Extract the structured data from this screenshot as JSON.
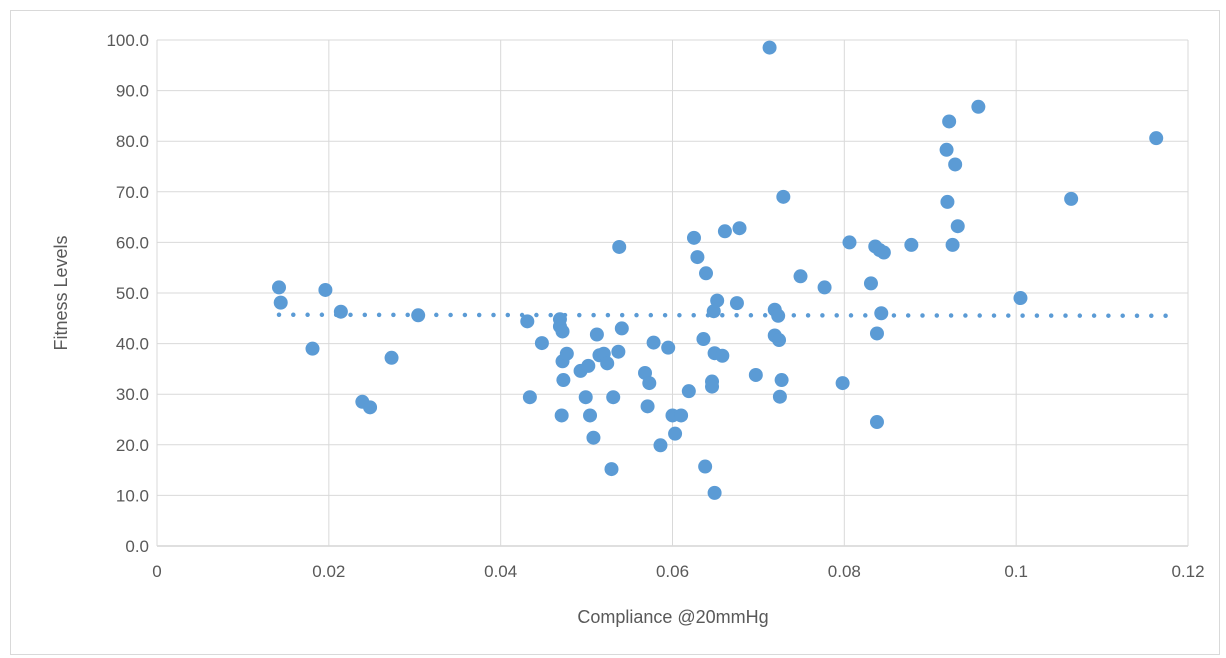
{
  "chart_data": {
    "type": "scatter",
    "title": "",
    "xlabel": "Compliance @20mmHg",
    "ylabel": "Fitness Levels",
    "xlim": [
      0,
      0.12
    ],
    "ylim": [
      0,
      100
    ],
    "x_ticks": [
      0,
      0.02,
      0.04,
      0.06,
      0.08,
      0.1,
      0.12
    ],
    "x_tick_labels": [
      "0",
      "0.02",
      "0.04",
      "0.06",
      "0.08",
      "0.1",
      "0.12"
    ],
    "y_ticks": [
      0,
      10,
      20,
      30,
      40,
      50,
      60,
      70,
      80,
      90,
      100
    ],
    "y_tick_labels": [
      "0.0",
      "10.0",
      "20.0",
      "30.0",
      "40.0",
      "50.0",
      "60.0",
      "70.0",
      "80.0",
      "90.0",
      "100.0"
    ],
    "grid": true,
    "legend": false,
    "marker_color": "#5b9bd5",
    "trendline": {
      "type": "linear",
      "style": "dotted",
      "color": "#5b9bd5",
      "x": [
        0.0142,
        0.1185
      ],
      "y": [
        45.7,
        45.5
      ]
    },
    "series": [
      {
        "points": [
          [
            0.0142,
            51.1
          ],
          [
            0.0144,
            48.1
          ],
          [
            0.0181,
            39.0
          ],
          [
            0.0196,
            50.6
          ],
          [
            0.0214,
            46.3
          ],
          [
            0.0239,
            28.5
          ],
          [
            0.0248,
            27.4
          ],
          [
            0.0273,
            37.2
          ],
          [
            0.0304,
            45.6
          ],
          [
            0.0431,
            44.4
          ],
          [
            0.0434,
            29.4
          ],
          [
            0.0448,
            40.1
          ],
          [
            0.0469,
            44.8
          ],
          [
            0.0469,
            43.4
          ],
          [
            0.0471,
            25.8
          ],
          [
            0.0472,
            42.4
          ],
          [
            0.0472,
            36.5
          ],
          [
            0.0473,
            32.8
          ],
          [
            0.0477,
            38.0
          ],
          [
            0.0493,
            34.6
          ],
          [
            0.0499,
            29.4
          ],
          [
            0.0502,
            35.6
          ],
          [
            0.0504,
            25.8
          ],
          [
            0.0508,
            21.4
          ],
          [
            0.0512,
            41.8
          ],
          [
            0.0515,
            37.7
          ],
          [
            0.052,
            38.0
          ],
          [
            0.0524,
            36.1
          ],
          [
            0.0529,
            15.2
          ],
          [
            0.0531,
            29.4
          ],
          [
            0.0537,
            38.4
          ],
          [
            0.0538,
            59.1
          ],
          [
            0.0541,
            43.0
          ],
          [
            0.0568,
            34.2
          ],
          [
            0.0571,
            27.6
          ],
          [
            0.0573,
            32.2
          ],
          [
            0.0578,
            40.2
          ],
          [
            0.0586,
            19.9
          ],
          [
            0.0595,
            39.2
          ],
          [
            0.06,
            25.8
          ],
          [
            0.0603,
            22.2
          ],
          [
            0.061,
            25.8
          ],
          [
            0.0619,
            30.6
          ],
          [
            0.0625,
            60.9
          ],
          [
            0.0629,
            57.1
          ],
          [
            0.0636,
            40.9
          ],
          [
            0.0638,
            15.7
          ],
          [
            0.0639,
            53.9
          ],
          [
            0.0646,
            32.5
          ],
          [
            0.0646,
            31.5
          ],
          [
            0.0648,
            46.4
          ],
          [
            0.0649,
            38.1
          ],
          [
            0.0649,
            10.5
          ],
          [
            0.0652,
            48.5
          ],
          [
            0.0658,
            37.6
          ],
          [
            0.0661,
            62.2
          ],
          [
            0.0675,
            48.0
          ],
          [
            0.0678,
            62.8
          ],
          [
            0.0697,
            33.8
          ],
          [
            0.0713,
            98.5
          ],
          [
            0.0719,
            46.7
          ],
          [
            0.0719,
            41.6
          ],
          [
            0.0723,
            45.5
          ],
          [
            0.0724,
            40.7
          ],
          [
            0.0725,
            29.5
          ],
          [
            0.0727,
            32.8
          ],
          [
            0.0729,
            69.0
          ],
          [
            0.0749,
            53.3
          ],
          [
            0.0777,
            51.1
          ],
          [
            0.0798,
            32.2
          ],
          [
            0.0806,
            60.0
          ],
          [
            0.0831,
            51.9
          ],
          [
            0.0836,
            59.2
          ],
          [
            0.0838,
            24.5
          ],
          [
            0.0838,
            42.0
          ],
          [
            0.0841,
            58.5
          ],
          [
            0.0843,
            46.0
          ],
          [
            0.0846,
            58.0
          ],
          [
            0.0878,
            59.5
          ],
          [
            0.0919,
            78.3
          ],
          [
            0.092,
            68.0
          ],
          [
            0.0922,
            83.9
          ],
          [
            0.0926,
            59.5
          ],
          [
            0.0929,
            75.4
          ],
          [
            0.0932,
            63.2
          ],
          [
            0.0956,
            86.8
          ],
          [
            0.1005,
            49.0
          ],
          [
            0.1064,
            68.6
          ],
          [
            0.1163,
            80.6
          ]
        ]
      }
    ]
  }
}
